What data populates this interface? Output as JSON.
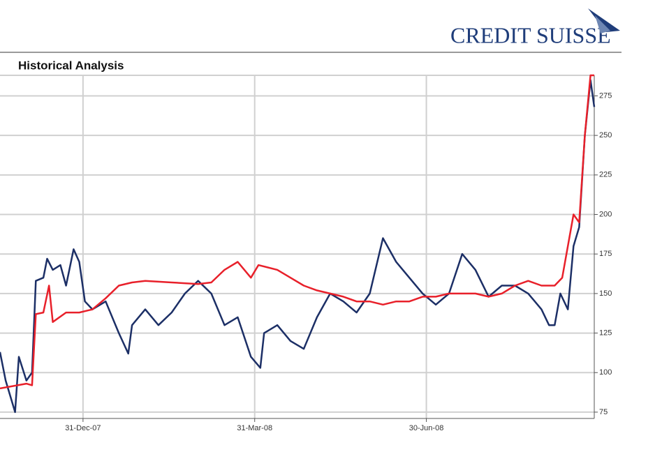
{
  "logo": "CREDIT SUISSE",
  "chart_data": {
    "type": "line",
    "title": "Historical Analysis",
    "xlim": [
      "2007-11-17",
      "2008-09-27"
    ],
    "xticks": [
      {
        "value": "2007-12-31",
        "label": "31-Dec-07"
      },
      {
        "value": "2008-03-31",
        "label": "31-Mar-08"
      },
      {
        "value": "2008-06-30",
        "label": "30-Jun-08"
      }
    ],
    "ylim": [
      71,
      288
    ],
    "yticks": [
      75,
      100,
      125,
      150,
      175,
      200,
      225,
      250,
      275
    ],
    "grid": true,
    "series": [
      {
        "color": "#1c2f66",
        "x": [
          "2007-11-17",
          "2007-11-20",
          "2007-11-25",
          "2007-11-27",
          "2007-12-01",
          "2007-12-04",
          "2007-12-06",
          "2007-12-10",
          "2007-12-12",
          "2007-12-15",
          "2007-12-19",
          "2007-12-22",
          "2007-12-26",
          "2007-12-29",
          "2008-01-01",
          "2008-01-05",
          "2008-01-12",
          "2008-01-19",
          "2008-01-24",
          "2008-01-26",
          "2008-02-02",
          "2008-02-09",
          "2008-02-16",
          "2008-02-23",
          "2008-03-01",
          "2008-03-08",
          "2008-03-15",
          "2008-03-22",
          "2008-03-29",
          "2008-04-03",
          "2008-04-05",
          "2008-04-12",
          "2008-04-19",
          "2008-04-26",
          "2008-05-03",
          "2008-05-10",
          "2008-05-17",
          "2008-05-24",
          "2008-05-31",
          "2008-06-07",
          "2008-06-14",
          "2008-06-21",
          "2008-06-28",
          "2008-07-05",
          "2008-07-12",
          "2008-07-19",
          "2008-07-26",
          "2008-08-02",
          "2008-08-09",
          "2008-08-16",
          "2008-08-23",
          "2008-08-30",
          "2008-09-03",
          "2008-09-06",
          "2008-09-09",
          "2008-09-13",
          "2008-09-16",
          "2008-09-19",
          "2008-09-22",
          "2008-09-25",
          "2008-09-27"
        ],
        "values": [
          113,
          95,
          75,
          110,
          95,
          100,
          158,
          160,
          172,
          165,
          168,
          155,
          178,
          170,
          145,
          140,
          145,
          125,
          112,
          130,
          140,
          130,
          138,
          150,
          158,
          150,
          130,
          135,
          110,
          103,
          125,
          130,
          120,
          115,
          135,
          150,
          145,
          138,
          150,
          185,
          170,
          160,
          150,
          143,
          150,
          175,
          165,
          148,
          155,
          155,
          150,
          140,
          130,
          130,
          150,
          140,
          180,
          192,
          250,
          285,
          268
        ]
      },
      {
        "color": "#e8202a",
        "x": [
          "2007-11-17",
          "2007-12-01",
          "2007-12-04",
          "2007-12-06",
          "2007-12-10",
          "2007-12-13",
          "2007-12-15",
          "2007-12-22",
          "2007-12-29",
          "2008-01-05",
          "2008-01-12",
          "2008-01-19",
          "2008-01-26",
          "2008-02-02",
          "2008-02-16",
          "2008-03-01",
          "2008-03-08",
          "2008-03-15",
          "2008-03-22",
          "2008-03-29",
          "2008-04-02",
          "2008-04-12",
          "2008-04-19",
          "2008-04-26",
          "2008-05-03",
          "2008-05-10",
          "2008-05-17",
          "2008-05-24",
          "2008-05-31",
          "2008-06-07",
          "2008-06-14",
          "2008-06-21",
          "2008-06-28",
          "2008-07-05",
          "2008-07-12",
          "2008-07-19",
          "2008-07-26",
          "2008-08-02",
          "2008-08-09",
          "2008-08-16",
          "2008-08-23",
          "2008-08-30",
          "2008-09-06",
          "2008-09-10",
          "2008-09-13",
          "2008-09-16",
          "2008-09-19",
          "2008-09-22",
          "2008-09-25",
          "2008-09-27"
        ],
        "values": [
          90,
          93,
          92,
          137,
          138,
          155,
          132,
          138,
          138,
          140,
          147,
          155,
          157,
          158,
          157,
          156,
          157,
          165,
          170,
          160,
          168,
          165,
          160,
          155,
          152,
          150,
          148,
          145,
          145,
          143,
          145,
          145,
          148,
          148,
          150,
          150,
          150,
          148,
          150,
          155,
          158,
          155,
          155,
          160,
          180,
          200,
          195,
          250,
          288,
          288
        ]
      }
    ]
  }
}
